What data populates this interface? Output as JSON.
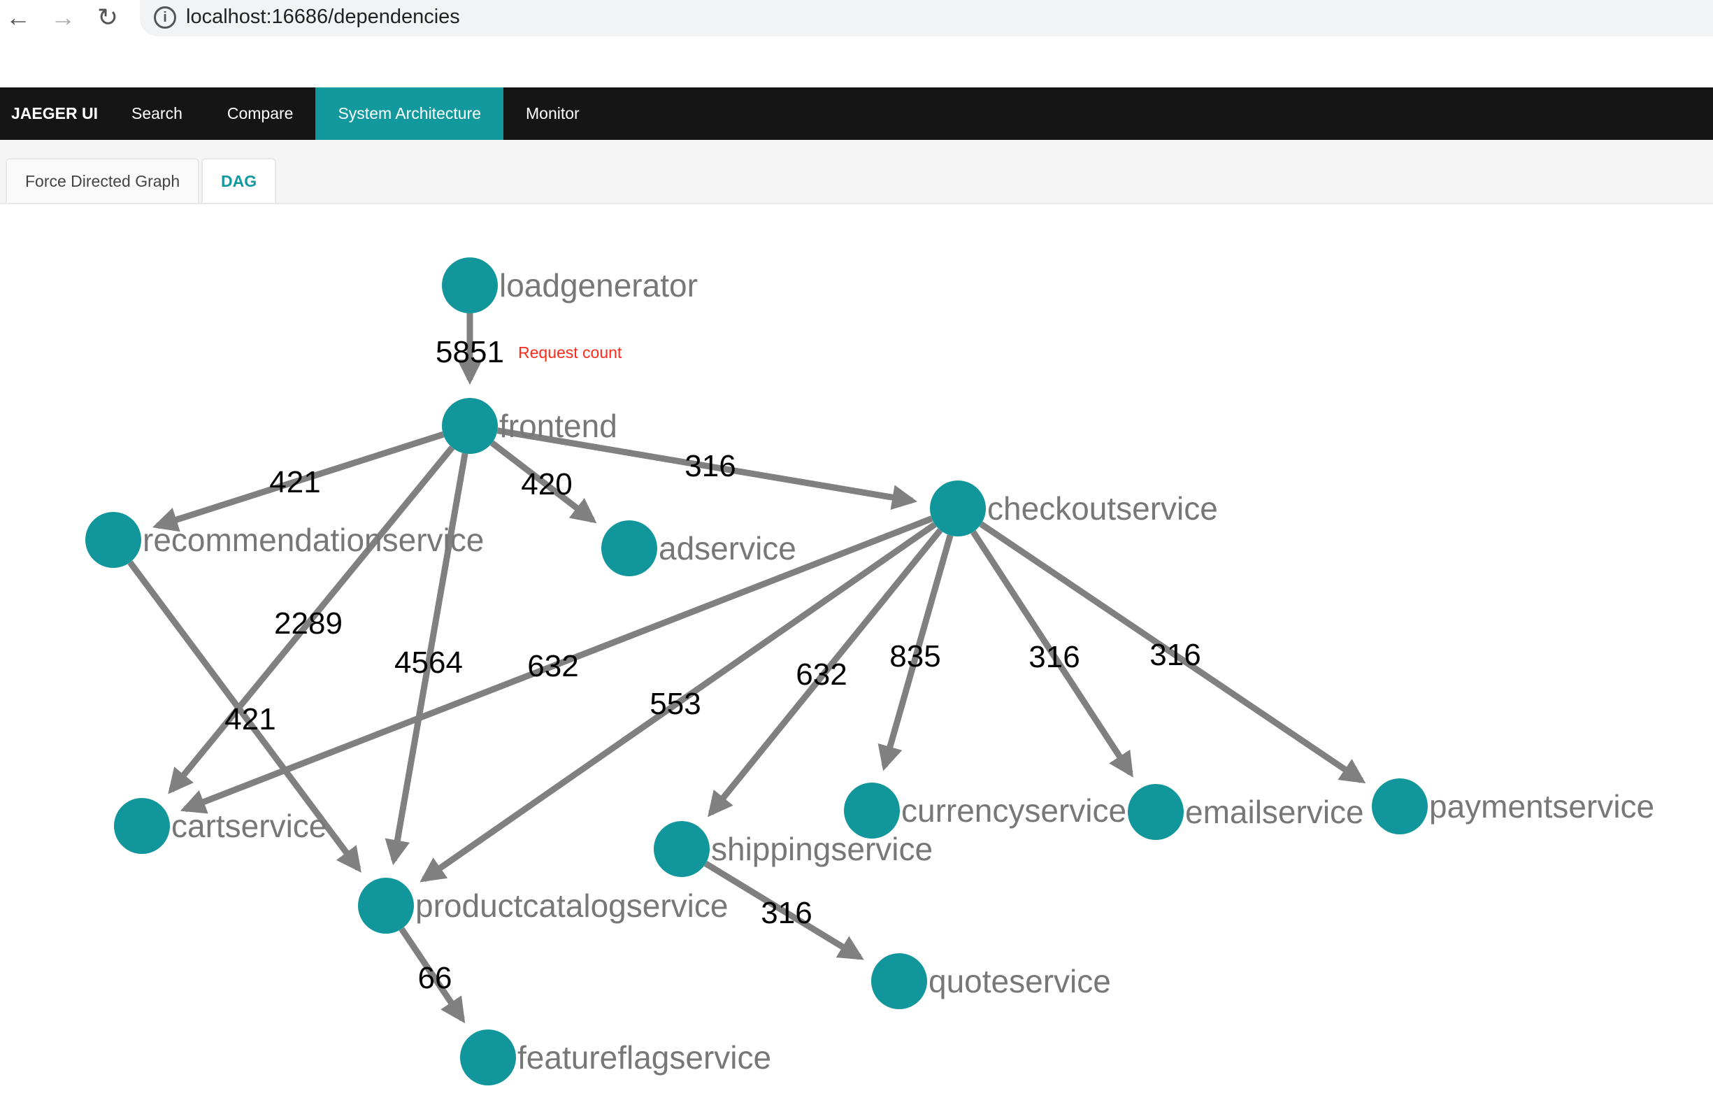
{
  "browser": {
    "url": "localhost:16686/dependencies",
    "back_icon": "arrow-left-icon",
    "forward_icon": "arrow-right-icon",
    "reload_icon": "reload-icon",
    "info_icon": "info-icon"
  },
  "nav": {
    "brand": "JAEGER UI",
    "items": [
      "Search",
      "Compare",
      "System Architecture",
      "Monitor"
    ],
    "active": "System Architecture"
  },
  "tabs": {
    "items": [
      "Force Directed Graph",
      "DAG"
    ],
    "active": "DAG"
  },
  "graph": {
    "node_color": "#11969b",
    "edge_color": "#808080",
    "annotation": {
      "text": "Request count",
      "color": "#ff2a1a"
    },
    "nodes": [
      "loadgenerator",
      "frontend",
      "recommendationservice",
      "adservice",
      "checkoutservice",
      "cartservice",
      "productcatalogservice",
      "shippingservice",
      "currencyservice",
      "emailservice",
      "paymentservice",
      "quoteservice",
      "featureflagservice"
    ],
    "edges": [
      {
        "from": "loadgenerator",
        "to": "frontend",
        "count": "5851"
      },
      {
        "from": "frontend",
        "to": "recommendationservice",
        "count": "421"
      },
      {
        "from": "frontend",
        "to": "adservice",
        "count": "420"
      },
      {
        "from": "frontend",
        "to": "checkoutservice",
        "count": "316"
      },
      {
        "from": "frontend",
        "to": "cartservice",
        "count": "2289"
      },
      {
        "from": "frontend",
        "to": "productcatalogservice",
        "count": "4564"
      },
      {
        "from": "recommendationservice",
        "to": "productcatalogservice",
        "count": "421"
      },
      {
        "from": "checkoutservice",
        "to": "cartservice",
        "count": "632"
      },
      {
        "from": "checkoutservice",
        "to": "productcatalogservice",
        "count": "553"
      },
      {
        "from": "checkoutservice",
        "to": "shippingservice",
        "count": "632"
      },
      {
        "from": "checkoutservice",
        "to": "currencyservice",
        "count": "835"
      },
      {
        "from": "checkoutservice",
        "to": "emailservice",
        "count": "316"
      },
      {
        "from": "checkoutservice",
        "to": "paymentservice",
        "count": "316"
      },
      {
        "from": "shippingservice",
        "to": "quoteservice",
        "count": "316"
      },
      {
        "from": "productcatalogservice",
        "to": "featureflagservice",
        "count": "66"
      }
    ]
  }
}
